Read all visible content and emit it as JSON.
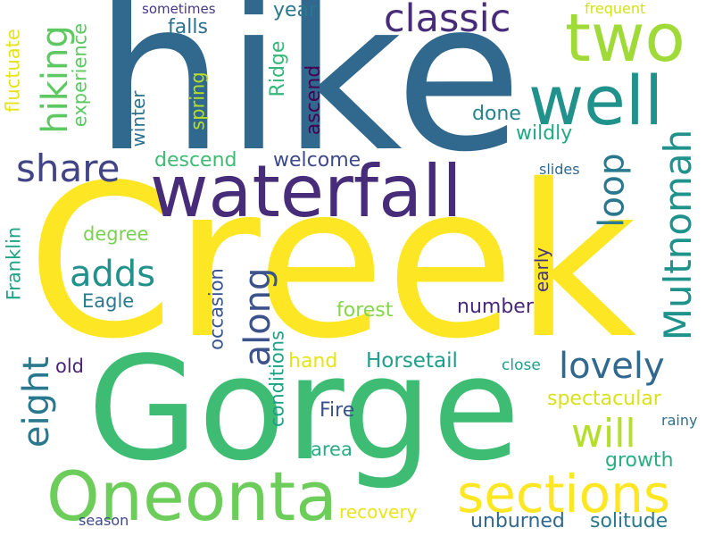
{
  "words": [
    {
      "id": "hike",
      "text": "hike",
      "color": "#31688e"
    },
    {
      "id": "creek",
      "text": "Creek",
      "color": "#fde725"
    },
    {
      "id": "gorge",
      "text": "Gorge",
      "color": "#3fbc73"
    },
    {
      "id": "waterfall",
      "text": "waterfall",
      "color": "#472c7a"
    },
    {
      "id": "oneonta",
      "text": "Oneonta",
      "color": "#6ccd5a"
    },
    {
      "id": "sections",
      "text": "sections",
      "color": "#fde725"
    },
    {
      "id": "two",
      "text": "two",
      "color": "#a0da39"
    },
    {
      "id": "well",
      "text": "well",
      "color": "#21918c"
    },
    {
      "id": "classic",
      "text": "classic",
      "color": "#472c7a"
    },
    {
      "id": "hiking",
      "text": "hiking",
      "color": "#5ec962"
    },
    {
      "id": "share",
      "text": "share",
      "color": "#414487"
    },
    {
      "id": "loop",
      "text": "loop",
      "color": "#2a788e"
    },
    {
      "id": "multnomah",
      "text": "Multnomah",
      "color": "#20928c"
    },
    {
      "id": "lovely",
      "text": "lovely",
      "color": "#31688e"
    },
    {
      "id": "adds",
      "text": "adds",
      "color": "#21918c"
    },
    {
      "id": "along",
      "text": "along",
      "color": "#3b528b"
    },
    {
      "id": "eight",
      "text": "eight",
      "color": "#2a788e"
    },
    {
      "id": "will",
      "text": "will",
      "color": "#b5de2b"
    },
    {
      "id": "fluctuate",
      "text": "fluctuate",
      "color": "#e5e419"
    },
    {
      "id": "experience",
      "text": "experience",
      "color": "#5ec962"
    },
    {
      "id": "falls",
      "text": "falls",
      "color": "#2d708e"
    },
    {
      "id": "year",
      "text": "year",
      "color": "#2a788e"
    },
    {
      "id": "ridge",
      "text": "Ridge",
      "color": "#35b779"
    },
    {
      "id": "ascend",
      "text": "ascend",
      "color": "#440154"
    },
    {
      "id": "spring",
      "text": "spring",
      "color": "#b5de2b"
    },
    {
      "id": "winter",
      "text": "winter",
      "color": "#2c728e"
    },
    {
      "id": "done",
      "text": "done",
      "color": "#25848e"
    },
    {
      "id": "wildly",
      "text": "wildly",
      "color": "#22a884"
    },
    {
      "id": "descend",
      "text": "descend",
      "color": "#3fbc73"
    },
    {
      "id": "welcome",
      "text": "welcome",
      "color": "#3e4989"
    },
    {
      "id": "sometimes",
      "text": "sometimes",
      "color": "#443a83"
    },
    {
      "id": "frequent",
      "text": "frequent",
      "color": "#d2e21b"
    },
    {
      "id": "slides",
      "text": "slides",
      "color": "#31688e"
    },
    {
      "id": "degree",
      "text": "degree",
      "color": "#7ad151"
    },
    {
      "id": "eagle",
      "text": "Eagle",
      "color": "#2a788e"
    },
    {
      "id": "franklin",
      "text": "Franklin",
      "color": "#20a486"
    },
    {
      "id": "occasion",
      "text": "occasion",
      "color": "#39558c"
    },
    {
      "id": "forest",
      "text": "forest",
      "color": "#86d549"
    },
    {
      "id": "number",
      "text": "number",
      "color": "#482878"
    },
    {
      "id": "early",
      "text": "early",
      "color": "#46337f"
    },
    {
      "id": "old",
      "text": "old",
      "color": "#482576"
    },
    {
      "id": "hand",
      "text": "hand",
      "color": "#e5e419"
    },
    {
      "id": "horsetail",
      "text": "Horsetail",
      "color": "#1f9e89"
    },
    {
      "id": "close",
      "text": "close",
      "color": "#1f9e89"
    },
    {
      "id": "conditions",
      "text": "conditions",
      "color": "#1fa187"
    },
    {
      "id": "spectacular",
      "text": "spectacular",
      "color": "#d8e219"
    },
    {
      "id": "fire",
      "text": "Fire",
      "color": "#3b528b"
    },
    {
      "id": "rainy",
      "text": "rainy",
      "color": "#2d708e"
    },
    {
      "id": "area",
      "text": "area",
      "color": "#27ad81"
    },
    {
      "id": "growth",
      "text": "growth",
      "color": "#29af7f"
    },
    {
      "id": "recovery",
      "text": "recovery",
      "color": "#eae51a"
    },
    {
      "id": "unburned",
      "text": "unburned",
      "color": "#31688e"
    },
    {
      "id": "solitude",
      "text": "solitude",
      "color": "#2a788e"
    },
    {
      "id": "season",
      "text": "season",
      "color": "#3e4989"
    }
  ]
}
